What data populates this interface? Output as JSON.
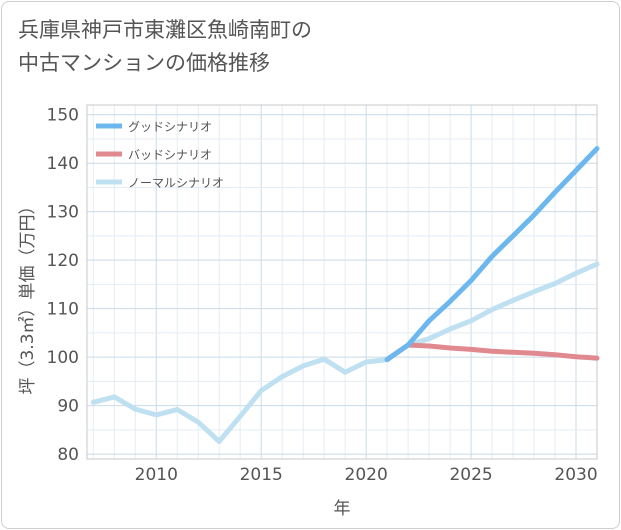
{
  "chart_data": {
    "type": "line",
    "title_lines": [
      "兵庫県神戸市東灘区魚崎南町の",
      "中古マンションの価格推移"
    ],
    "xlabel": "年",
    "ylabel": "坪（3.3㎡）単価（万円）",
    "xlim": [
      2006.7,
      2031
    ],
    "ylim": [
      79,
      152
    ],
    "x_ticks": [
      2010,
      2015,
      2020,
      2025,
      2030
    ],
    "y_ticks": [
      80,
      90,
      100,
      110,
      120,
      130,
      140,
      150
    ],
    "grid": true,
    "legend_position": "top-left",
    "series": [
      {
        "name": "グッドシナリオ",
        "color": "#6cb8ee",
        "x": [
          2021,
          2022,
          2023,
          2024,
          2025,
          2026,
          2027,
          2028,
          2029,
          2030,
          2031
        ],
        "y": [
          99.5,
          102.5,
          107.5,
          111.5,
          115.8,
          120.8,
          125.0,
          129.3,
          134.0,
          138.5,
          143.0
        ]
      },
      {
        "name": "バッドシナリオ",
        "color": "#e08a90",
        "x": [
          2021,
          2022,
          2023,
          2024,
          2025,
          2026,
          2027,
          2028,
          2029,
          2030,
          2031
        ],
        "y": [
          99.5,
          102.5,
          102.3,
          101.9,
          101.6,
          101.2,
          101.0,
          100.8,
          100.5,
          100.1,
          99.8
        ]
      },
      {
        "name": "ノーマルシナリオ",
        "color": "#bfe0f0",
        "x": [
          2007,
          2008,
          2009,
          2010,
          2011,
          2012,
          2013,
          2014,
          2015,
          2016,
          2017,
          2018,
          2019,
          2020,
          2021,
          2022,
          2023,
          2024,
          2025,
          2026,
          2027,
          2028,
          2029,
          2030,
          2031
        ],
        "y": [
          90.7,
          91.8,
          89.3,
          88.1,
          89.2,
          86.6,
          82.6,
          87.8,
          93.1,
          96.0,
          98.2,
          99.6,
          96.9,
          99.0,
          99.5,
          102.5,
          103.8,
          105.8,
          107.5,
          109.8,
          111.7,
          113.5,
          115.2,
          117.3,
          119.2
        ]
      }
    ]
  }
}
